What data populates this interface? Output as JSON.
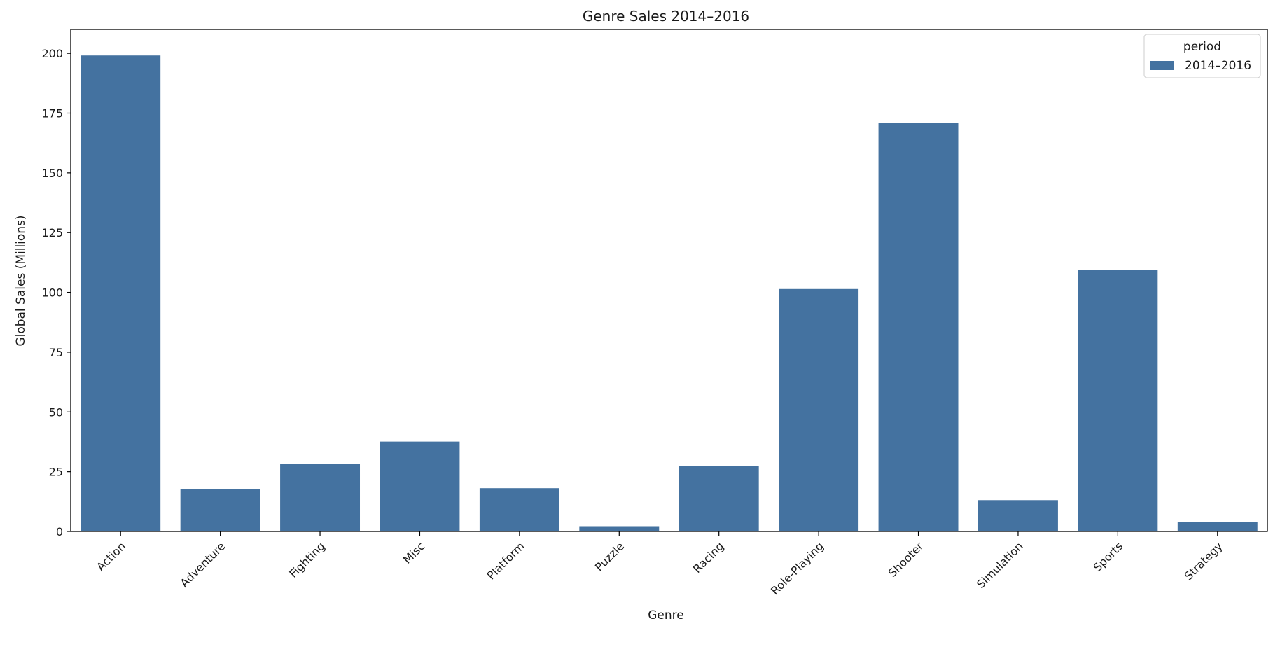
{
  "chart_data": {
    "type": "bar",
    "title": "Genre Sales 2014–2016",
    "xlabel": "Genre",
    "ylabel": "Global Sales (Millions)",
    "ylim": [
      0,
      210
    ],
    "yticks": [
      0,
      25,
      50,
      75,
      100,
      125,
      150,
      175,
      200
    ],
    "categories": [
      "Action",
      "Adventure",
      "Fighting",
      "Misc",
      "Platform",
      "Puzzle",
      "Racing",
      "Role-Playing",
      "Shooter",
      "Simulation",
      "Sports",
      "Strategy"
    ],
    "series": [
      {
        "name": "2014–2016",
        "color": "#4472a0",
        "values": [
          199.1,
          17.6,
          28.2,
          37.6,
          18.1,
          2.2,
          27.5,
          101.4,
          171.0,
          13.1,
          109.5,
          3.9
        ]
      }
    ],
    "legend": {
      "title": "period",
      "placement": "top-right"
    },
    "grid": false
  }
}
